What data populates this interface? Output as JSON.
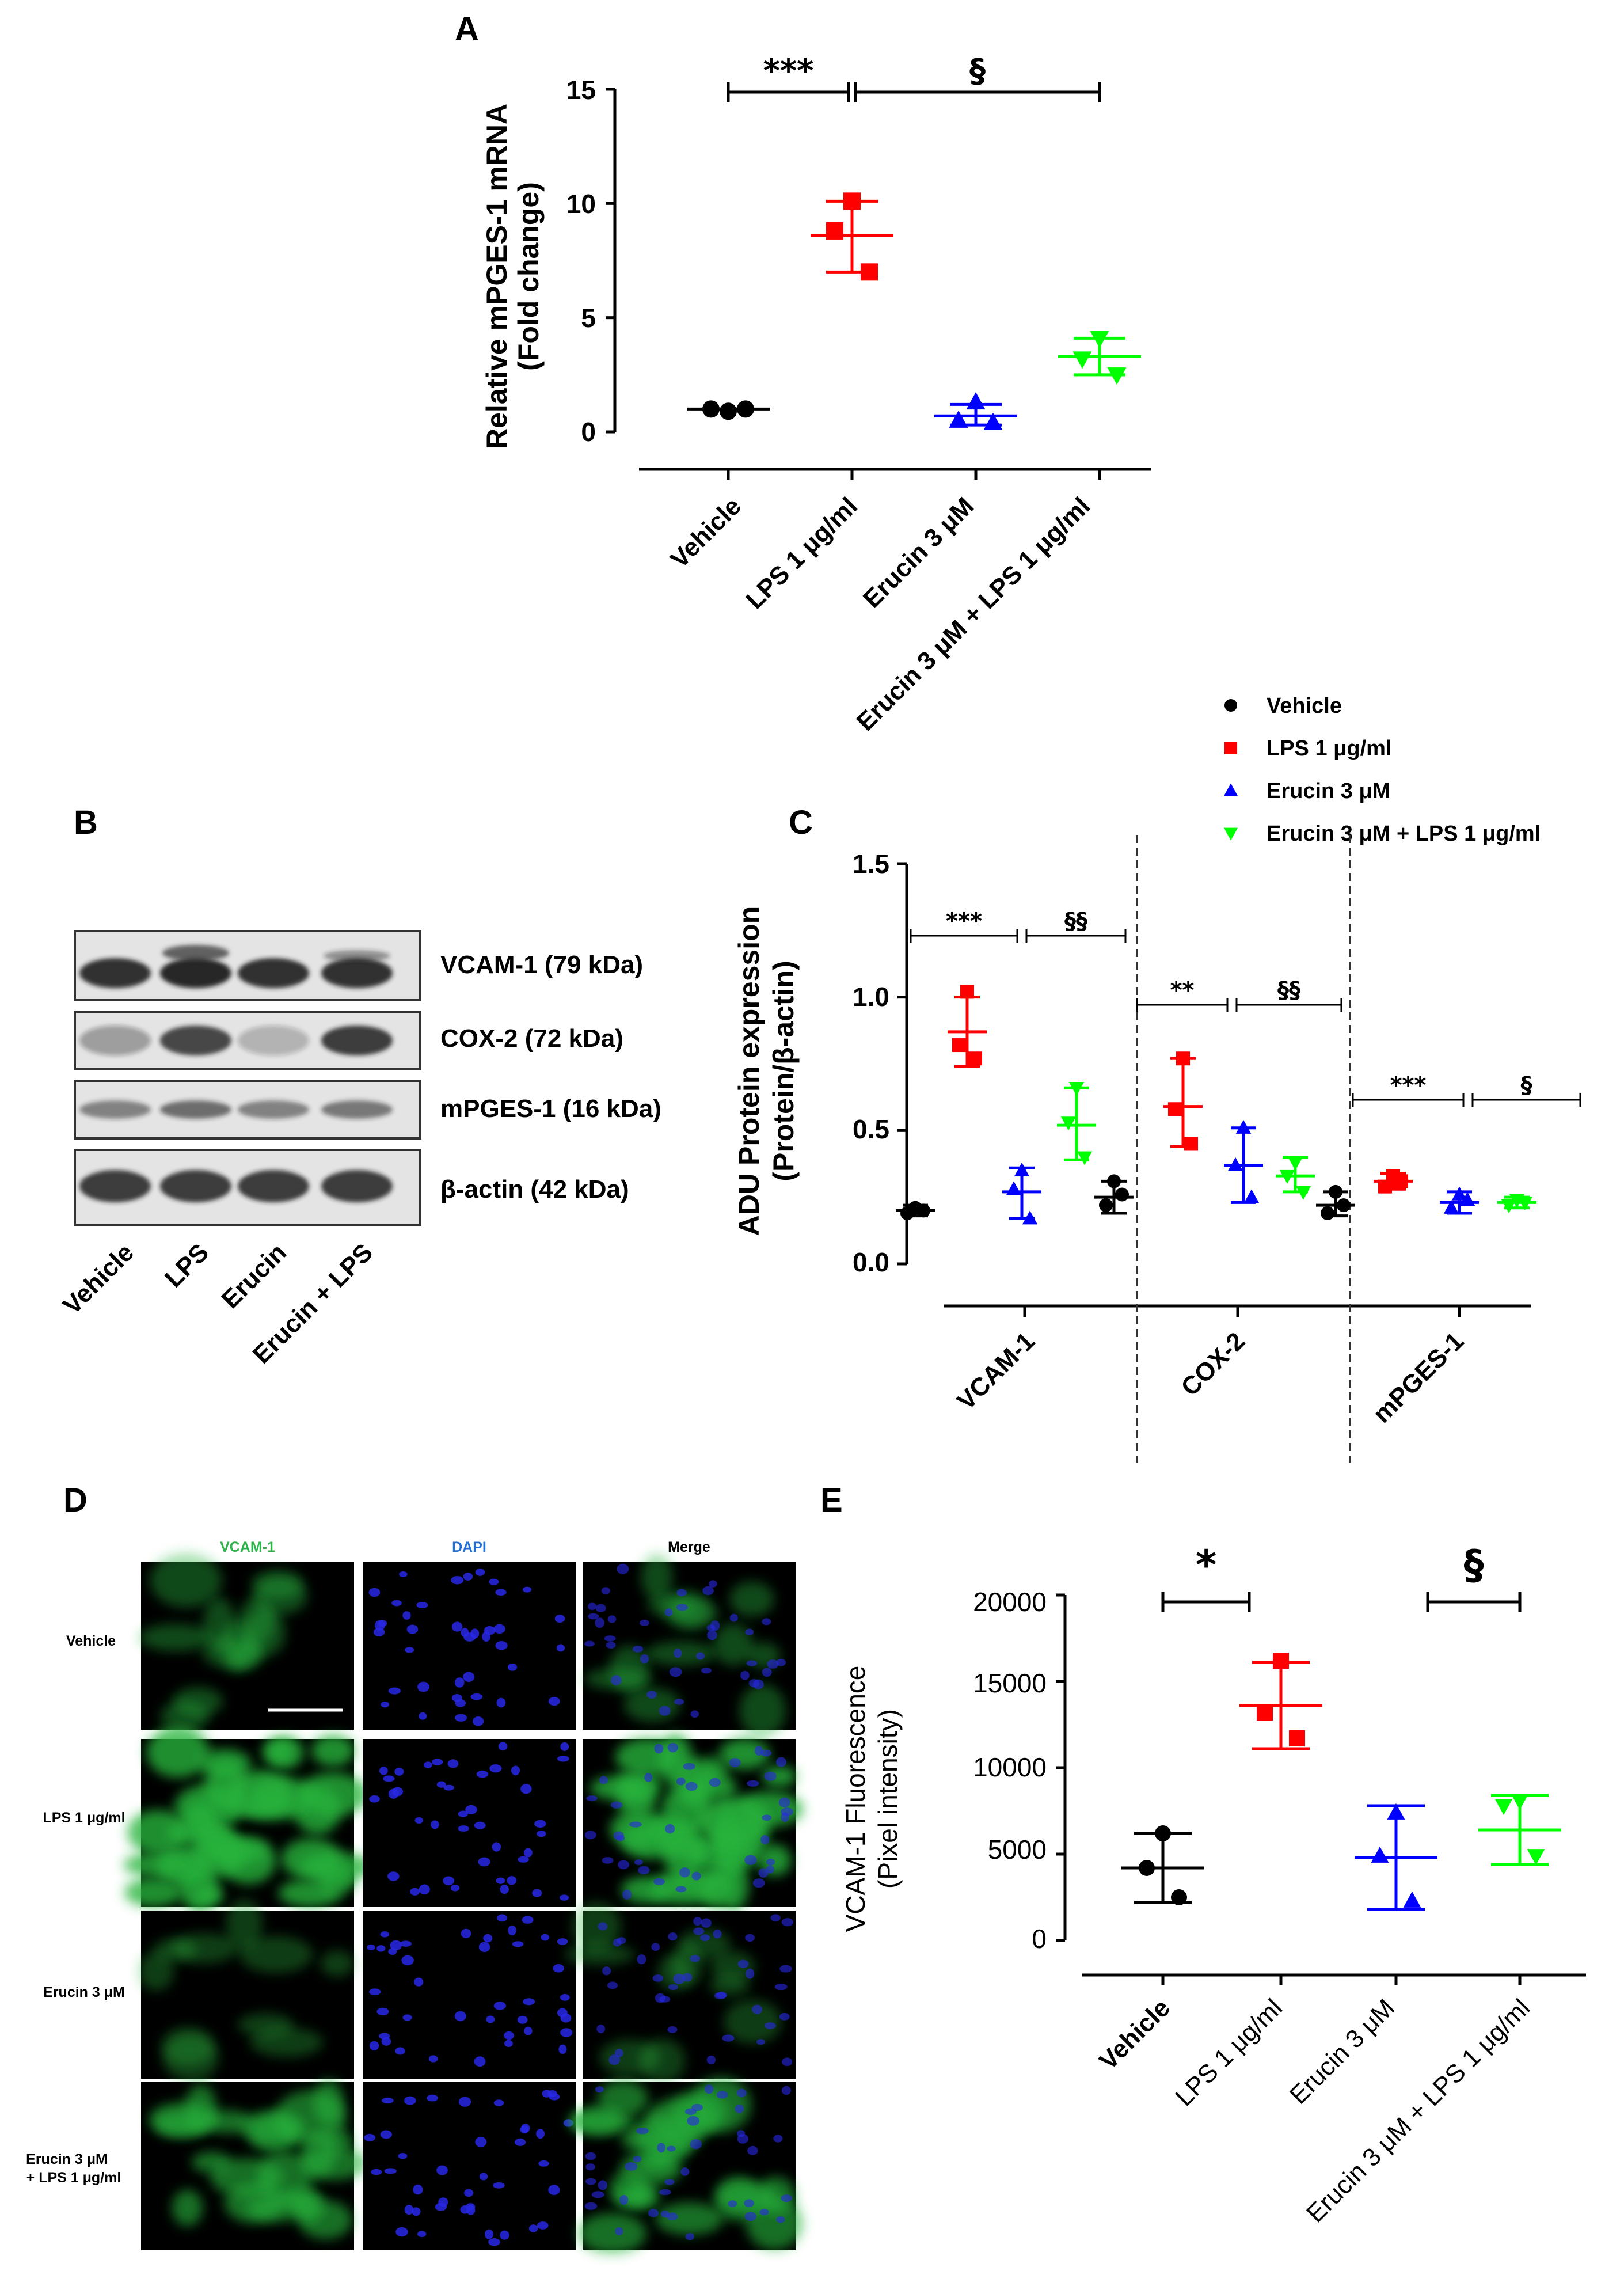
{
  "panels": {
    "A": "A",
    "B": "B",
    "C": "C",
    "D": "D",
    "E": "E"
  },
  "colors": {
    "vehicle": "#000000",
    "lps": "#ff0000",
    "erucin": "#0000ff",
    "combo": "#00ff00"
  },
  "chart_data": [
    {
      "id": "A",
      "type": "scatter",
      "ylabel_lines": [
        "Relative mPGES-1 mRNA",
        "(Fold change)"
      ],
      "ylim": [
        0,
        15
      ],
      "yticks": [
        "15",
        "10",
        "5",
        "0"
      ],
      "categories": [
        "Vehicle",
        "LPS 1 μg/ml",
        "Erucin 3 μM",
        "Erucin 3 μM + LPS 1 μg/ml"
      ],
      "series": [
        {
          "points": [
            0.9,
            1.0,
            1.0
          ],
          "mean": 1.0,
          "sd_low": 1.0,
          "sd_high": 1.0,
          "marker": "circle",
          "color": "#000000"
        },
        {
          "points": [
            10.1,
            8.8,
            7.0
          ],
          "mean": 8.6,
          "sd_low": 7.0,
          "sd_high": 10.1,
          "marker": "square",
          "color": "#ff0000"
        },
        {
          "points": [
            1.3,
            0.5,
            0.4
          ],
          "mean": 0.7,
          "sd_low": 0.3,
          "sd_high": 1.2,
          "marker": "triangle",
          "color": "#0000ff"
        },
        {
          "points": [
            4.1,
            3.2,
            2.5
          ],
          "mean": 3.3,
          "sd_low": 2.5,
          "sd_high": 4.1,
          "marker": "triangle-down",
          "color": "#00ff00"
        }
      ],
      "brackets": [
        {
          "from": 0,
          "to": 1,
          "label": "***"
        },
        {
          "from": 1,
          "to": 3,
          "label": "§"
        }
      ]
    },
    {
      "id": "C",
      "type": "scatter",
      "ylabel_lines": [
        "ADU Protein expression",
        "(Protein/β-actin)"
      ],
      "ylim": [
        0,
        1.5
      ],
      "yticks": [
        "1.5",
        "1.0",
        "0.5",
        "0.0"
      ],
      "groups": [
        "VCAM-1",
        "COX-2",
        "mPGES-1"
      ],
      "legend": [
        "Vehicle",
        "LPS 1 μg/ml",
        "Erucin 3 μM",
        "Erucin 3 μM + LPS 1 μg/ml"
      ],
      "legend_position": "top-right",
      "series": [
        {
          "name": "Vehicle",
          "marker": "circle",
          "color": "#000000",
          "values": [
            {
              "points": [
                0.21,
                0.19,
                0.2
              ],
              "mean": 0.2,
              "sd_low": 0.18,
              "sd_high": 0.22
            },
            {
              "points": [
                0.31,
                0.22,
                0.26
              ],
              "mean": 0.25,
              "sd_low": 0.19,
              "sd_high": 0.31
            },
            {
              "points": [
                0.27,
                0.19,
                0.22
              ],
              "mean": 0.22,
              "sd_low": 0.18,
              "sd_high": 0.27
            }
          ]
        },
        {
          "name": "LPS 1 μg/ml",
          "marker": "square",
          "color": "#ff0000",
          "values": [
            {
              "points": [
                1.02,
                0.82,
                0.77
              ],
              "mean": 0.87,
              "sd_low": 0.74,
              "sd_high": 1.0
            },
            {
              "points": [
                0.77,
                0.58,
                0.45
              ],
              "mean": 0.59,
              "sd_low": 0.44,
              "sd_high": 0.77
            },
            {
              "points": [
                0.33,
                0.29,
                0.31
              ],
              "mean": 0.31,
              "sd_low": 0.28,
              "sd_high": 0.34
            }
          ]
        },
        {
          "name": "Erucin 3 μM",
          "marker": "triangle",
          "color": "#0000ff",
          "values": [
            {
              "points": [
                0.35,
                0.28,
                0.17
              ],
              "mean": 0.27,
              "sd_low": 0.17,
              "sd_high": 0.36
            },
            {
              "points": [
                0.51,
                0.37,
                0.25
              ],
              "mean": 0.37,
              "sd_low": 0.23,
              "sd_high": 0.51
            },
            {
              "points": [
                0.26,
                0.21,
                0.24
              ],
              "mean": 0.23,
              "sd_low": 0.19,
              "sd_high": 0.27
            }
          ]
        },
        {
          "name": "Erucin 3 μM + LPS 1 μg/ml",
          "marker": "triangle-down",
          "color": "#00ff00",
          "values": [
            {
              "points": [
                0.66,
                0.53,
                0.4
              ],
              "mean": 0.52,
              "sd_low": 0.39,
              "sd_high": 0.66
            },
            {
              "points": [
                0.38,
                0.33,
                0.27
              ],
              "mean": 0.33,
              "sd_low": 0.27,
              "sd_high": 0.4
            },
            {
              "points": [
                0.24,
                0.22,
                0.23
              ],
              "mean": 0.23,
              "sd_low": 0.21,
              "sd_high": 0.25
            }
          ]
        }
      ],
      "brackets": [
        {
          "group": 0,
          "from": 0,
          "to": 1,
          "label": "***"
        },
        {
          "group": 0,
          "from": 1,
          "to": 3,
          "label": "§§"
        },
        {
          "group": 1,
          "from": 0,
          "to": 1,
          "label": "**"
        },
        {
          "group": 1,
          "from": 1,
          "to": 3,
          "label": "§§"
        },
        {
          "group": 2,
          "from": 0,
          "to": 1,
          "label": "***"
        },
        {
          "group": 2,
          "from": 1,
          "to": 3,
          "label": "§"
        }
      ]
    },
    {
      "id": "E",
      "type": "scatter",
      "ylabel_lines": [
        "VCAM-1 Fluorescence",
        "(Pixel intensity)"
      ],
      "ylim": [
        0,
        20000
      ],
      "yticks": [
        "20000",
        "15000",
        "10000",
        "5000",
        "0"
      ],
      "categories": [
        "Vehicle",
        "LPS 1 μg/ml",
        "Erucin 3 μM",
        "Erucin 3 μM + LPS 1 μg/ml"
      ],
      "series": [
        {
          "points": [
            6200,
            4200,
            2500
          ],
          "mean": 4200,
          "sd_low": 2200,
          "sd_high": 6200,
          "marker": "circle",
          "color": "#000000"
        },
        {
          "points": [
            16200,
            13200,
            11700
          ],
          "mean": 13600,
          "sd_low": 11100,
          "sd_high": 16100,
          "marker": "square",
          "color": "#ff0000"
        },
        {
          "points": [
            7400,
            4900,
            2300
          ],
          "mean": 4800,
          "sd_low": 1800,
          "sd_high": 7800,
          "marker": "triangle",
          "color": "#0000ff"
        },
        {
          "points": [
            8100,
            7800,
            4900
          ],
          "mean": 6400,
          "sd_low": 4400,
          "sd_high": 8400,
          "marker": "triangle-down",
          "color": "#00ff00"
        }
      ],
      "brackets": [
        {
          "from": 0,
          "to": 1,
          "label": "*"
        },
        {
          "from": 2,
          "to": 3,
          "label": "§"
        }
      ]
    }
  ],
  "blot": {
    "bands": [
      "VCAM-1 (79 kDa)",
      "COX-2 (72 kDa)",
      "mPGES-1 (16 kDa)",
      "β-actin (42 kDa)"
    ],
    "lanes": [
      "Vehicle",
      "LPS",
      "Erucin",
      "Erucin + LPS"
    ]
  },
  "micrographs": {
    "columns": [
      "VCAM-1",
      "DAPI",
      "Merge"
    ],
    "column_colors": [
      "#2db34a",
      "#1f6fd6",
      "#000000"
    ],
    "rows": [
      [
        "Vehicle"
      ],
      [
        "LPS 1 μg/ml"
      ],
      [
        "Erucin 3 μM"
      ],
      [
        "Erucin 3 μM",
        "+ LPS 1 μg/ml"
      ]
    ]
  }
}
